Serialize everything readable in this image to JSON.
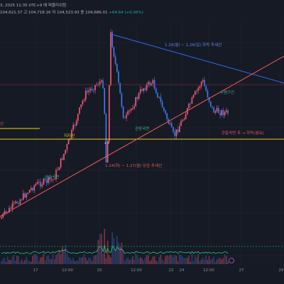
{
  "header": {
    "line1": "3, 2025 11:35 UTC+9 에 퍼블리쉬됨",
    "line2_ohlc": "104,621.37  고 104,718.16  저 104,523.93  종 104,686.01",
    "line2_change": "+64.64 (+0.06%)"
  },
  "colors": {
    "background": "#161a25",
    "bullish": "#ff5a72",
    "bearish": "#3e7cf2",
    "descending_trendline": "#2e6bf2",
    "ascending_trendline": "#f05a5a",
    "support_line": "#e3d21e",
    "volume_ma": "#26c281",
    "annotation_text_red": "#e05757",
    "annotation_text_blue": "#5e88e6",
    "annotation_text_green": "#3fb58a",
    "grid": "#232733"
  },
  "annotations": {
    "downtrend_label": "1.20(월) ~ 1.26(일) 하락 추세선",
    "uptrend_label": "1.14(화) ~ 1.27(월) 상승 추세선",
    "support_label": "지지선",
    "left_edge_label": "선",
    "convergence_label": "수렴구간",
    "rise_label_left": "상승국면",
    "rise_label_mid": "관망국면",
    "right_label": "관찰국면 후 → 하락(월요)",
    "event_marker": "+2"
  },
  "x_axis_ticks": [
    "17",
    "12:00",
    "20",
    "12:00",
    "22",
    "24",
    "12:00",
    "27",
    "29"
  ],
  "chart_data": {
    "type": "candlestick",
    "title": "",
    "x_ticks": [
      "17",
      "12:00",
      "20",
      "12:00",
      "22",
      "24",
      "12:00",
      "27",
      "29"
    ],
    "price_path": [
      {
        "t": "16 12:00",
        "close": 98500
      },
      {
        "t": "17",
        "close": 100500
      },
      {
        "t": "17 12:00",
        "close": 100800
      },
      {
        "t": "18",
        "close": 102800
      },
      {
        "t": "18 12:00",
        "close": 105800
      },
      {
        "t": "19",
        "close": 106500
      },
      {
        "t": "19 12:00",
        "close": 106300
      },
      {
        "t": "20",
        "close": 101000
      },
      {
        "t": "20 12:00",
        "close": 109300
      },
      {
        "t": "21",
        "close": 104200
      },
      {
        "t": "21 12:00",
        "close": 106100
      },
      {
        "t": "22",
        "close": 106500
      },
      {
        "t": "23",
        "close": 103300
      },
      {
        "t": "24",
        "close": 105800
      },
      {
        "t": "24 12:00",
        "close": 106600
      },
      {
        "t": "25",
        "close": 104800
      },
      {
        "t": "26",
        "close": 104686
      }
    ],
    "lines": [
      {
        "name": "1.20(월) ~ 1.26(일) 하락 추세선",
        "kind": "descending"
      },
      {
        "name": "1.14(화) ~ 1.27(월) 상승 추세선",
        "kind": "ascending"
      },
      {
        "name": "지지선",
        "kind": "horizontal"
      }
    ],
    "volume": {
      "shown": true,
      "ma_line": true
    },
    "grid": true
  }
}
